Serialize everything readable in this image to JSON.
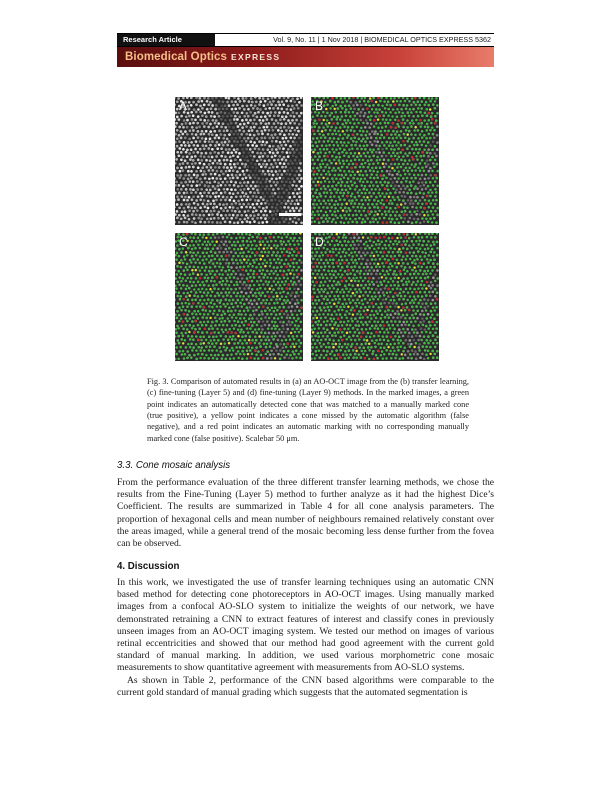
{
  "header": {
    "tag": "Research Article",
    "info": "Vol. 9, No. 11 | 1 Nov 2018 | BIOMEDICAL OPTICS EXPRESS 5362",
    "brand": "Biomedical Optics",
    "brand_suffix": "EXPRESS"
  },
  "figure": {
    "panels": [
      {
        "letter": "A"
      },
      {
        "letter": "B"
      },
      {
        "letter": "C"
      },
      {
        "letter": "D"
      }
    ],
    "caption": "Fig. 3. Comparison of automated results in (a) an AO-OCT image from the (b) transfer learning, (c) fine-tuning (Layer 5) and (d) fine-tuning (Layer 9) methods. In the marked images, a green point indicates an automatically detected cone that was matched to a manually marked cone (true positive), a yellow point indicates a cone missed by the automatic algorithm (false negative), and a red point indicates an automatic marking with no corresponding manually marked cone (false positive). Scalebar 50 μm.",
    "colors": {
      "true_positive": "#3fbf3f",
      "false_negative": "#e6e62a",
      "false_positive": "#d02525"
    }
  },
  "section33": {
    "title": "3.3.   Cone mosaic analysis",
    "para": "From the performance evaluation of the three different transfer learning methods, we chose the results from the Fine-Tuning (Layer 5) method to further analyze as it had the highest Dice’s Coefficient. The results are summarized in Table 4 for all cone analysis parameters. The proportion of hexagonal cells and mean number of neighbours remained relatively constant over the areas imaged, while a general trend of the mosaic becoming less dense further from the fovea can be observed."
  },
  "section4": {
    "title": "4.   Discussion",
    "para1": "In this work, we investigated the use of transfer learning techniques using an automatic CNN based method for detecting cone photoreceptors in AO-OCT images. Using manually marked images from a confocal AO-SLO system to initialize the weights of our network, we have demonstrated retraining a CNN to extract features of interest and classify cones in previously unseen images from an AO-OCT imaging system. We tested our method on images of various retinal eccentricities and showed that our method had good agreement with the current gold standard of manual marking. In addition, we used various morphometric cone mosaic measurements to show quantitative agreement with measurements from AO-SLO systems.",
    "para2": "As shown in Table 2, performance of the CNN based algorithms were comparable to the current gold standard of manual grading which suggests that the automated segmentation is"
  }
}
